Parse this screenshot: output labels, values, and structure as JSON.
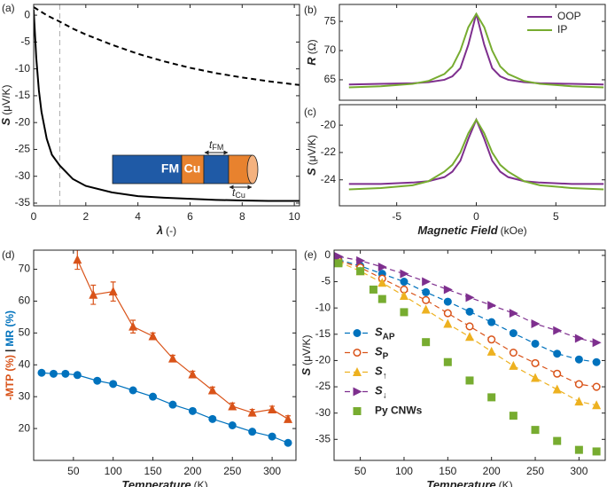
{
  "chart_data": [
    {
      "type": "line",
      "panel_label": "(a)",
      "xlabel": {
        "symbol": "λ",
        "unit": "(-)"
      },
      "ylabel": {
        "symbol": "S",
        "unit": "(μV/K)"
      },
      "x": [
        0,
        0.1,
        0.2,
        0.3,
        0.5,
        0.7,
        1,
        1.5,
        2,
        3,
        4,
        5,
        6,
        7,
        8,
        9,
        10,
        10.2
      ],
      "series": [
        {
          "color": "#000000",
          "line": "solid",
          "values": [
            1,
            -8,
            -14,
            -18,
            -23,
            -26,
            -28,
            -30.5,
            -31.8,
            -33,
            -33.7,
            -34,
            -34.2,
            -34.4,
            -34.5,
            -34.6,
            -34.6,
            -34.6
          ]
        },
        {
          "color": "#000000",
          "line": "dashed",
          "values": [
            1.5,
            1.2,
            0.9,
            0.6,
            0,
            -0.5,
            -1.2,
            -2.5,
            -3.6,
            -5.5,
            -7.2,
            -8.6,
            -9.8,
            -10.8,
            -11.6,
            -12.3,
            -12.9,
            -13
          ]
        }
      ],
      "xlim": [
        0,
        10.2
      ],
      "ylim": [
        -35.5,
        2
      ],
      "xticks": [
        0,
        2,
        4,
        6,
        8,
        10
      ],
      "yticks": [
        0,
        -5,
        -10,
        -15,
        -20,
        -25,
        -30,
        -35
      ],
      "reference_x": 1,
      "inset": {
        "fm": "FM",
        "cu": "Cu",
        "thickness_symbol": "t"
      }
    },
    {
      "type": "line",
      "panel_label": "(b)",
      "ylabel": {
        "symbol": "R",
        "unit": "(Ω)"
      },
      "x": [
        -8,
        -6,
        -4,
        -3,
        -2,
        -1.5,
        -1,
        -0.5,
        0,
        0.5,
        1,
        1.5,
        2,
        3,
        4,
        6,
        8
      ],
      "series": [
        {
          "name": "OOP",
          "color": "#7e2f8e",
          "line": "solid",
          "values": [
            64.2,
            64.3,
            64.4,
            64.6,
            65,
            65.6,
            67,
            71,
            76.3,
            71,
            67,
            65.6,
            65,
            64.6,
            64.4,
            64.3,
            64.2
          ]
        },
        {
          "name": "IP",
          "color": "#77ac30",
          "line": "solid",
          "values": [
            63.7,
            63.9,
            64.3,
            64.8,
            66,
            67.3,
            70,
            74,
            76.3,
            74,
            70,
            67.3,
            66,
            64.8,
            64.3,
            63.9,
            63.7
          ]
        }
      ],
      "xlim": [
        -8.6,
        8.1
      ],
      "ylim": [
        61.5,
        77.9
      ],
      "xticks": [
        -5,
        0,
        5
      ],
      "yticks": [
        65,
        70,
        75
      ],
      "show_xtick_labels": false,
      "legend": "upper right"
    },
    {
      "type": "line",
      "panel_label": "(c)",
      "xlabel": {
        "symbol": "Magnetic Field",
        "unit": "(kOe)"
      },
      "ylabel": {
        "symbol": "S",
        "unit": "(μV/K)"
      },
      "x": [
        -8,
        -6,
        -4,
        -3,
        -2,
        -1.5,
        -1,
        -0.5,
        0,
        0.5,
        1,
        1.5,
        2,
        3,
        4,
        6,
        8
      ],
      "series": [
        {
          "color": "#7e2f8e",
          "line": "solid",
          "values": [
            -24.3,
            -24.3,
            -24.2,
            -24.1,
            -23.8,
            -23.4,
            -22.6,
            -21,
            -19.6,
            -21,
            -22.6,
            -23.4,
            -23.8,
            -24.1,
            -24.2,
            -24.3,
            -24.3
          ]
        },
        {
          "color": "#77ac30",
          "line": "solid",
          "values": [
            -24.7,
            -24.6,
            -24.4,
            -24.1,
            -23.4,
            -22.9,
            -22,
            -20.6,
            -19.6,
            -20.6,
            -22,
            -22.9,
            -23.4,
            -24.1,
            -24.4,
            -24.6,
            -24.7
          ]
        }
      ],
      "xlim": [
        -8.6,
        8.1
      ],
      "ylim": [
        -25.9,
        -18.5
      ],
      "xticks": [
        -5,
        0,
        5
      ],
      "yticks": [
        -24,
        -22,
        -20
      ]
    },
    {
      "type": "line",
      "panel_label": "(d)",
      "xlabel": {
        "symbol": "Temperature",
        "unit": "(K)"
      },
      "ylabel_parts": [
        "-MTP (%)",
        "|",
        "MR (%)"
      ],
      "series": [
        {
          "color": "#d95319",
          "line": "solid",
          "marker": "triangle-up",
          "x": [
            55,
            75,
            100,
            125,
            150,
            175,
            200,
            225,
            250,
            275,
            300,
            320
          ],
          "values": [
            73,
            62,
            63,
            52,
            49,
            42,
            37,
            32,
            27,
            25,
            26,
            23
          ],
          "errors": [
            3,
            3,
            3,
            2,
            1,
            1,
            1,
            1,
            1,
            1,
            1,
            1
          ]
        },
        {
          "color": "#0072bd",
          "line": "solid",
          "marker": "circle",
          "x": [
            10,
            25,
            40,
            55,
            80,
            100,
            125,
            150,
            175,
            200,
            225,
            250,
            275,
            300,
            320
          ],
          "values": [
            37.5,
            37.2,
            37.2,
            36.8,
            35,
            34,
            32,
            30,
            27.5,
            25.5,
            23,
            21,
            19,
            17.5,
            15.5
          ]
        }
      ],
      "xlim": [
        0,
        330
      ],
      "ylim": [
        10,
        76
      ],
      "xticks": [
        50,
        100,
        150,
        200,
        250,
        300
      ],
      "yticks": [
        20,
        30,
        40,
        50,
        60,
        70
      ]
    },
    {
      "type": "line",
      "panel_label": "(e)",
      "xlabel": {
        "symbol": "Temperature",
        "unit": "(K)"
      },
      "ylabel": {
        "symbol": "S",
        "unit": "(μV/K)"
      },
      "series": [
        {
          "name": "S",
          "subscript": "AP",
          "color": "#0072bd",
          "line": "dashed",
          "marker": "circle",
          "x": [
            25,
            50,
            75,
            100,
            125,
            150,
            175,
            200,
            225,
            250,
            275,
            300,
            320
          ],
          "values": [
            -0.8,
            -2,
            -3.5,
            -5,
            -7,
            -8.8,
            -10.7,
            -12.7,
            -14.8,
            -16.8,
            -18.7,
            -19.8,
            -20.3
          ]
        },
        {
          "name": "S",
          "subscript": "P",
          "color": "#d95319",
          "line": "dashed",
          "marker": "circle-open",
          "x": [
            25,
            50,
            75,
            100,
            125,
            150,
            175,
            200,
            225,
            250,
            275,
            300,
            320
          ],
          "values": [
            -1,
            -2.3,
            -4.4,
            -6.5,
            -8.5,
            -11,
            -13.5,
            -16,
            -18.5,
            -20.5,
            -22.5,
            -24.5,
            -25
          ]
        },
        {
          "name": "S",
          "subscript": "↑",
          "color": "#edb120",
          "line": "dashed",
          "marker": "triangle-up",
          "x": [
            25,
            50,
            75,
            100,
            125,
            150,
            175,
            200,
            225,
            250,
            275,
            300,
            320
          ],
          "values": [
            -1.2,
            -3,
            -5.2,
            -7.7,
            -10.3,
            -13,
            -15.5,
            -18.3,
            -21,
            -23.3,
            -25.5,
            -27.8,
            -28.5
          ]
        },
        {
          "name": "S",
          "subscript": "↓",
          "color": "#7e2f8e",
          "line": "dashed",
          "marker": "triangle-right",
          "x": [
            25,
            50,
            75,
            100,
            125,
            150,
            175,
            200,
            225,
            250,
            275,
            300,
            320
          ],
          "values": [
            -0.2,
            -1,
            -2.2,
            -3.5,
            -5,
            -6.5,
            -8,
            -9.5,
            -11,
            -13,
            -14.3,
            -15.8,
            -16.6
          ]
        },
        {
          "name": "Py CNWs",
          "color": "#77ac30",
          "line": "none",
          "marker": "square",
          "x": [
            25,
            50,
            65,
            75,
            100,
            125,
            150,
            175,
            200,
            225,
            250,
            275,
            300,
            320
          ],
          "values": [
            -1.5,
            -3,
            -6.5,
            -8.3,
            -10.8,
            -16.5,
            -20.3,
            -23.8,
            -27,
            -30.5,
            -33.2,
            -35.3,
            -37,
            -37.3
          ]
        }
      ],
      "xlim": [
        20,
        330
      ],
      "ylim": [
        -39,
        1
      ],
      "xticks": [
        50,
        100,
        150,
        200,
        250,
        300
      ],
      "yticks": [
        0,
        -5,
        -10,
        -15,
        -20,
        -25,
        -30,
        -35
      ],
      "legend": "center left"
    }
  ]
}
